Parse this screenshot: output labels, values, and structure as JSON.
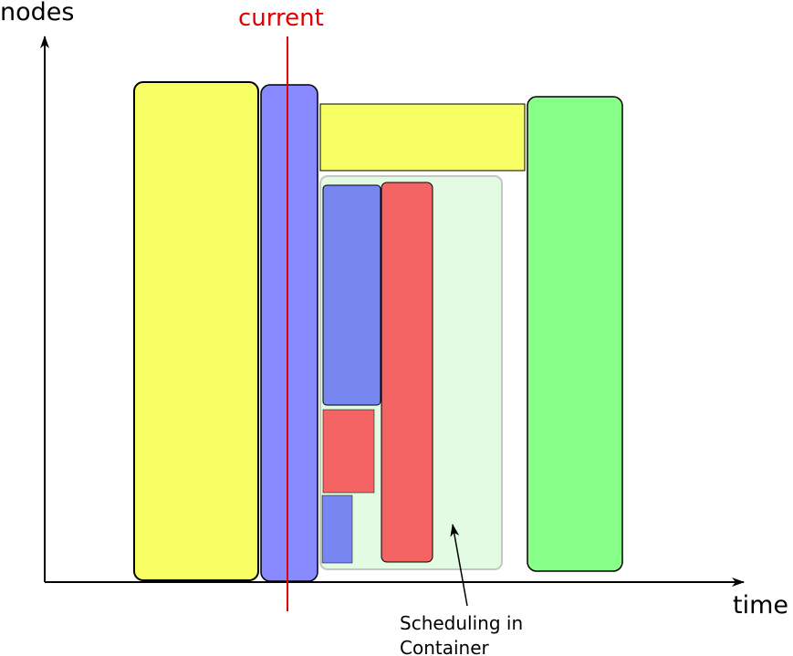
{
  "axes": {
    "y_label": "nodes",
    "x_label": "time"
  },
  "marker": {
    "label": "current",
    "color": "#e00000"
  },
  "annotation": {
    "lines": [
      "Scheduling in",
      "Container"
    ]
  },
  "colors": {
    "yellow": "#f7ff64",
    "blue": "#8888ff",
    "blue_dark": "#7786f0",
    "red": "#f56464",
    "green": "#88ff88",
    "container_fill": "#e2fbe2",
    "container_stroke": "#c6c6c6"
  }
}
